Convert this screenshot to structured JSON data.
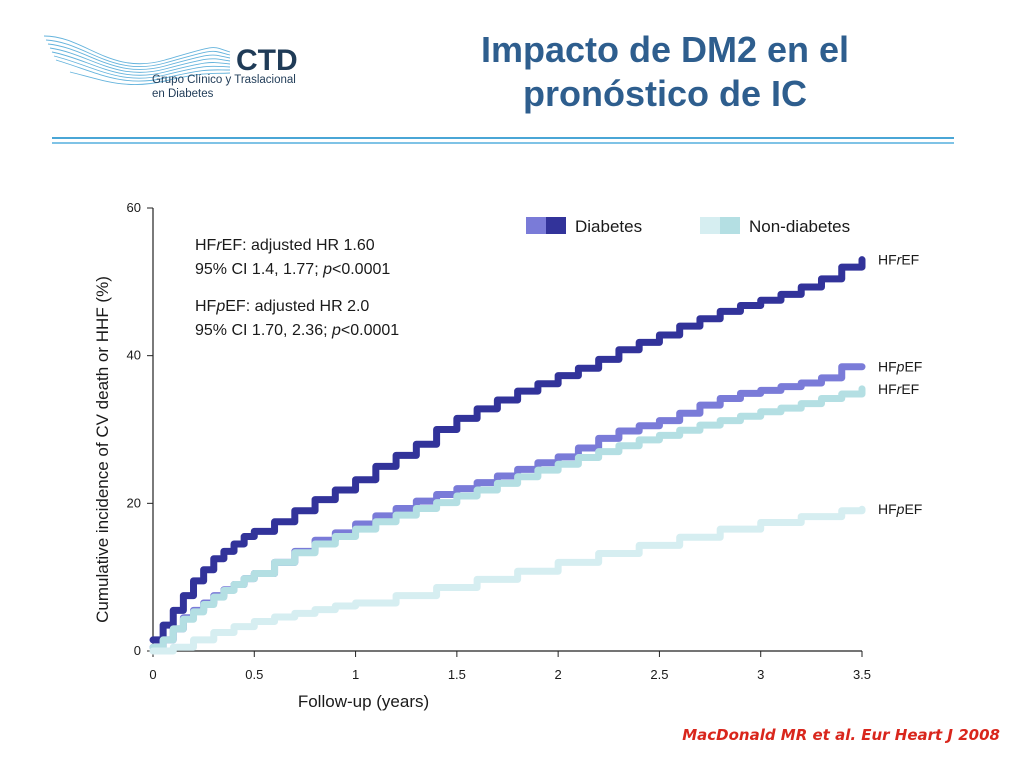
{
  "logo": {
    "mark": "CTD",
    "line1": "Grupo Clínico y Traslacional",
    "line2": "en Diabetes",
    "color": "#1f3b57",
    "wave_color": "#4aa6d6"
  },
  "title": {
    "line1": "Impacto de DM2 en el",
    "line2": "pronóstico de IC",
    "color": "#2e5e8e"
  },
  "citation": "MacDonald MR et al. Eur Heart J 2008",
  "chart_data": {
    "type": "line",
    "xlabel": "Follow-up (years)",
    "ylabel": "Cumulative incidence of CV death or HHF (%)",
    "xlim": [
      0,
      3.5
    ],
    "ylim": [
      0,
      60
    ],
    "x_ticks": [
      "0",
      "0.5",
      "1",
      "1.5",
      "2",
      "2.5",
      "3",
      "3.5"
    ],
    "y_ticks": [
      "0",
      "20",
      "40",
      "60"
    ],
    "legend": [
      {
        "label": "Diabetes",
        "colors": [
          "#7a7bd8",
          "#32339a"
        ]
      },
      {
        "label": "Non-diabetes",
        "colors": [
          "#d6eef1",
          "#b4dfe3"
        ]
      }
    ],
    "annotations": [
      {
        "line1": "HFrEF: adjusted HR 1.60",
        "line2": "95% CI 1.4, 1.77; p<0.0001"
      },
      {
        "line1": "HFpEF: adjusted HR 2.0",
        "line2": "95% CI 1.70, 2.36; p<0.0001"
      }
    ],
    "series": [
      {
        "name": "HFrEF",
        "group": "Diabetes",
        "color": "#32339a",
        "x": [
          0,
          0.05,
          0.1,
          0.15,
          0.2,
          0.25,
          0.3,
          0.35,
          0.4,
          0.45,
          0.5,
          0.6,
          0.7,
          0.8,
          0.9,
          1.0,
          1.1,
          1.2,
          1.3,
          1.4,
          1.5,
          1.6,
          1.7,
          1.8,
          1.9,
          2.0,
          2.1,
          2.2,
          2.3,
          2.4,
          2.5,
          2.6,
          2.7,
          2.8,
          2.9,
          3.0,
          3.1,
          3.2,
          3.3,
          3.4,
          3.5
        ],
        "y": [
          1.5,
          3.5,
          5.5,
          7.5,
          9.5,
          11,
          12.5,
          13.5,
          14.5,
          15.5,
          16.2,
          17.5,
          19,
          20.5,
          21.8,
          23.2,
          25,
          26.5,
          28,
          30,
          31.5,
          32.8,
          34,
          35.2,
          36.2,
          37.3,
          38.3,
          39.5,
          40.8,
          41.8,
          42.8,
          44,
          45,
          46,
          46.8,
          47.5,
          48.3,
          49.3,
          50.4,
          52,
          53
        ]
      },
      {
        "name": "HFpEF",
        "group": "Diabetes",
        "color": "#7a7bd8",
        "x": [
          0,
          0.05,
          0.1,
          0.15,
          0.2,
          0.25,
          0.3,
          0.35,
          0.4,
          0.45,
          0.5,
          0.6,
          0.7,
          0.8,
          0.9,
          1.0,
          1.1,
          1.2,
          1.3,
          1.4,
          1.5,
          1.6,
          1.7,
          1.8,
          1.9,
          2.0,
          2.1,
          2.2,
          2.3,
          2.4,
          2.5,
          2.6,
          2.7,
          2.8,
          2.9,
          3.0,
          3.1,
          3.2,
          3.3,
          3.4,
          3.5
        ],
        "y": [
          0.5,
          1.5,
          3,
          4.5,
          5.5,
          6.5,
          7.5,
          8.3,
          9,
          9.8,
          10.5,
          12,
          13.5,
          15,
          16,
          17.2,
          18.3,
          19.3,
          20.3,
          21.2,
          22,
          22.8,
          23.7,
          24.6,
          25.5,
          26.3,
          27.5,
          28.8,
          29.8,
          30.5,
          31.2,
          32.2,
          33.3,
          34.2,
          34.9,
          35.3,
          35.8,
          36.3,
          37,
          38.5,
          38.5
        ]
      },
      {
        "name": "HFrEF",
        "group": "Non-diabetes",
        "color": "#b4dfe3",
        "x": [
          0,
          0.05,
          0.1,
          0.15,
          0.2,
          0.25,
          0.3,
          0.35,
          0.4,
          0.45,
          0.5,
          0.6,
          0.7,
          0.8,
          0.9,
          1.0,
          1.1,
          1.2,
          1.3,
          1.4,
          1.5,
          1.6,
          1.7,
          1.8,
          1.9,
          2.0,
          2.1,
          2.2,
          2.3,
          2.4,
          2.5,
          2.6,
          2.7,
          2.8,
          2.9,
          3.0,
          3.1,
          3.2,
          3.3,
          3.4,
          3.5
        ],
        "y": [
          0.5,
          1.5,
          3,
          4.3,
          5.3,
          6.3,
          7.3,
          8.2,
          9,
          9.8,
          10.5,
          12,
          13.3,
          14.5,
          15.5,
          16.5,
          17.5,
          18.4,
          19.3,
          20.1,
          21,
          21.8,
          22.7,
          23.6,
          24.5,
          25.3,
          26.2,
          27,
          27.8,
          28.6,
          29.2,
          29.9,
          30.6,
          31.2,
          31.8,
          32.4,
          32.9,
          33.5,
          34.2,
          34.8,
          35.5
        ]
      },
      {
        "name": "HFpEF",
        "group": "Non-diabetes",
        "color": "#d6eef1",
        "x": [
          0,
          0.1,
          0.2,
          0.3,
          0.4,
          0.5,
          0.6,
          0.7,
          0.8,
          0.9,
          1.0,
          1.2,
          1.4,
          1.6,
          1.8,
          2.0,
          2.2,
          2.4,
          2.6,
          2.8,
          3.0,
          3.2,
          3.4,
          3.5
        ],
        "y": [
          0,
          0.5,
          1.5,
          2.5,
          3.3,
          4,
          4.6,
          5.1,
          5.6,
          6.1,
          6.5,
          7.5,
          8.6,
          9.7,
          10.8,
          12,
          13.2,
          14.3,
          15.4,
          16.5,
          17.4,
          18.2,
          19,
          19.2
        ]
      }
    ]
  }
}
